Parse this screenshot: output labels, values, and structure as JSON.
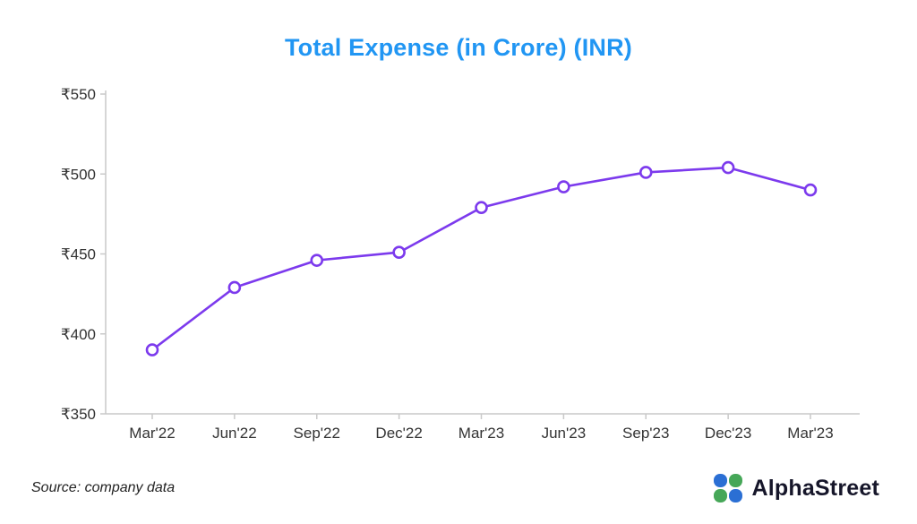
{
  "page": {
    "title": "Total Expense (in Crore) (INR)"
  },
  "chart_data": {
    "type": "line",
    "title": "Total Expense (in Crore) (INR)",
    "categories": [
      "Mar'22",
      "Jun'22",
      "Sep'22",
      "Dec'22",
      "Mar'23",
      "Jun'23",
      "Sep'23",
      "Dec'23",
      "Mar'23"
    ],
    "values": [
      390,
      429,
      446,
      451,
      479,
      492,
      501,
      504,
      490
    ],
    "xlabel": "",
    "ylabel": "",
    "ylim": [
      350,
      550
    ],
    "yticks": [
      350,
      400,
      450,
      500,
      550
    ],
    "currency_prefix": "₹",
    "grid": false,
    "legend": false,
    "colors": {
      "line": "#7c3aed",
      "marker_fill": "#ffffff",
      "axis": "#c9c9c9",
      "tick_text": "#333333",
      "title": "#2196f3"
    }
  },
  "footer": {
    "source_note": "Source: company data",
    "brand_name": "AlphaStreet"
  },
  "icons": {
    "logo": "alphastreet-clover-icon"
  }
}
